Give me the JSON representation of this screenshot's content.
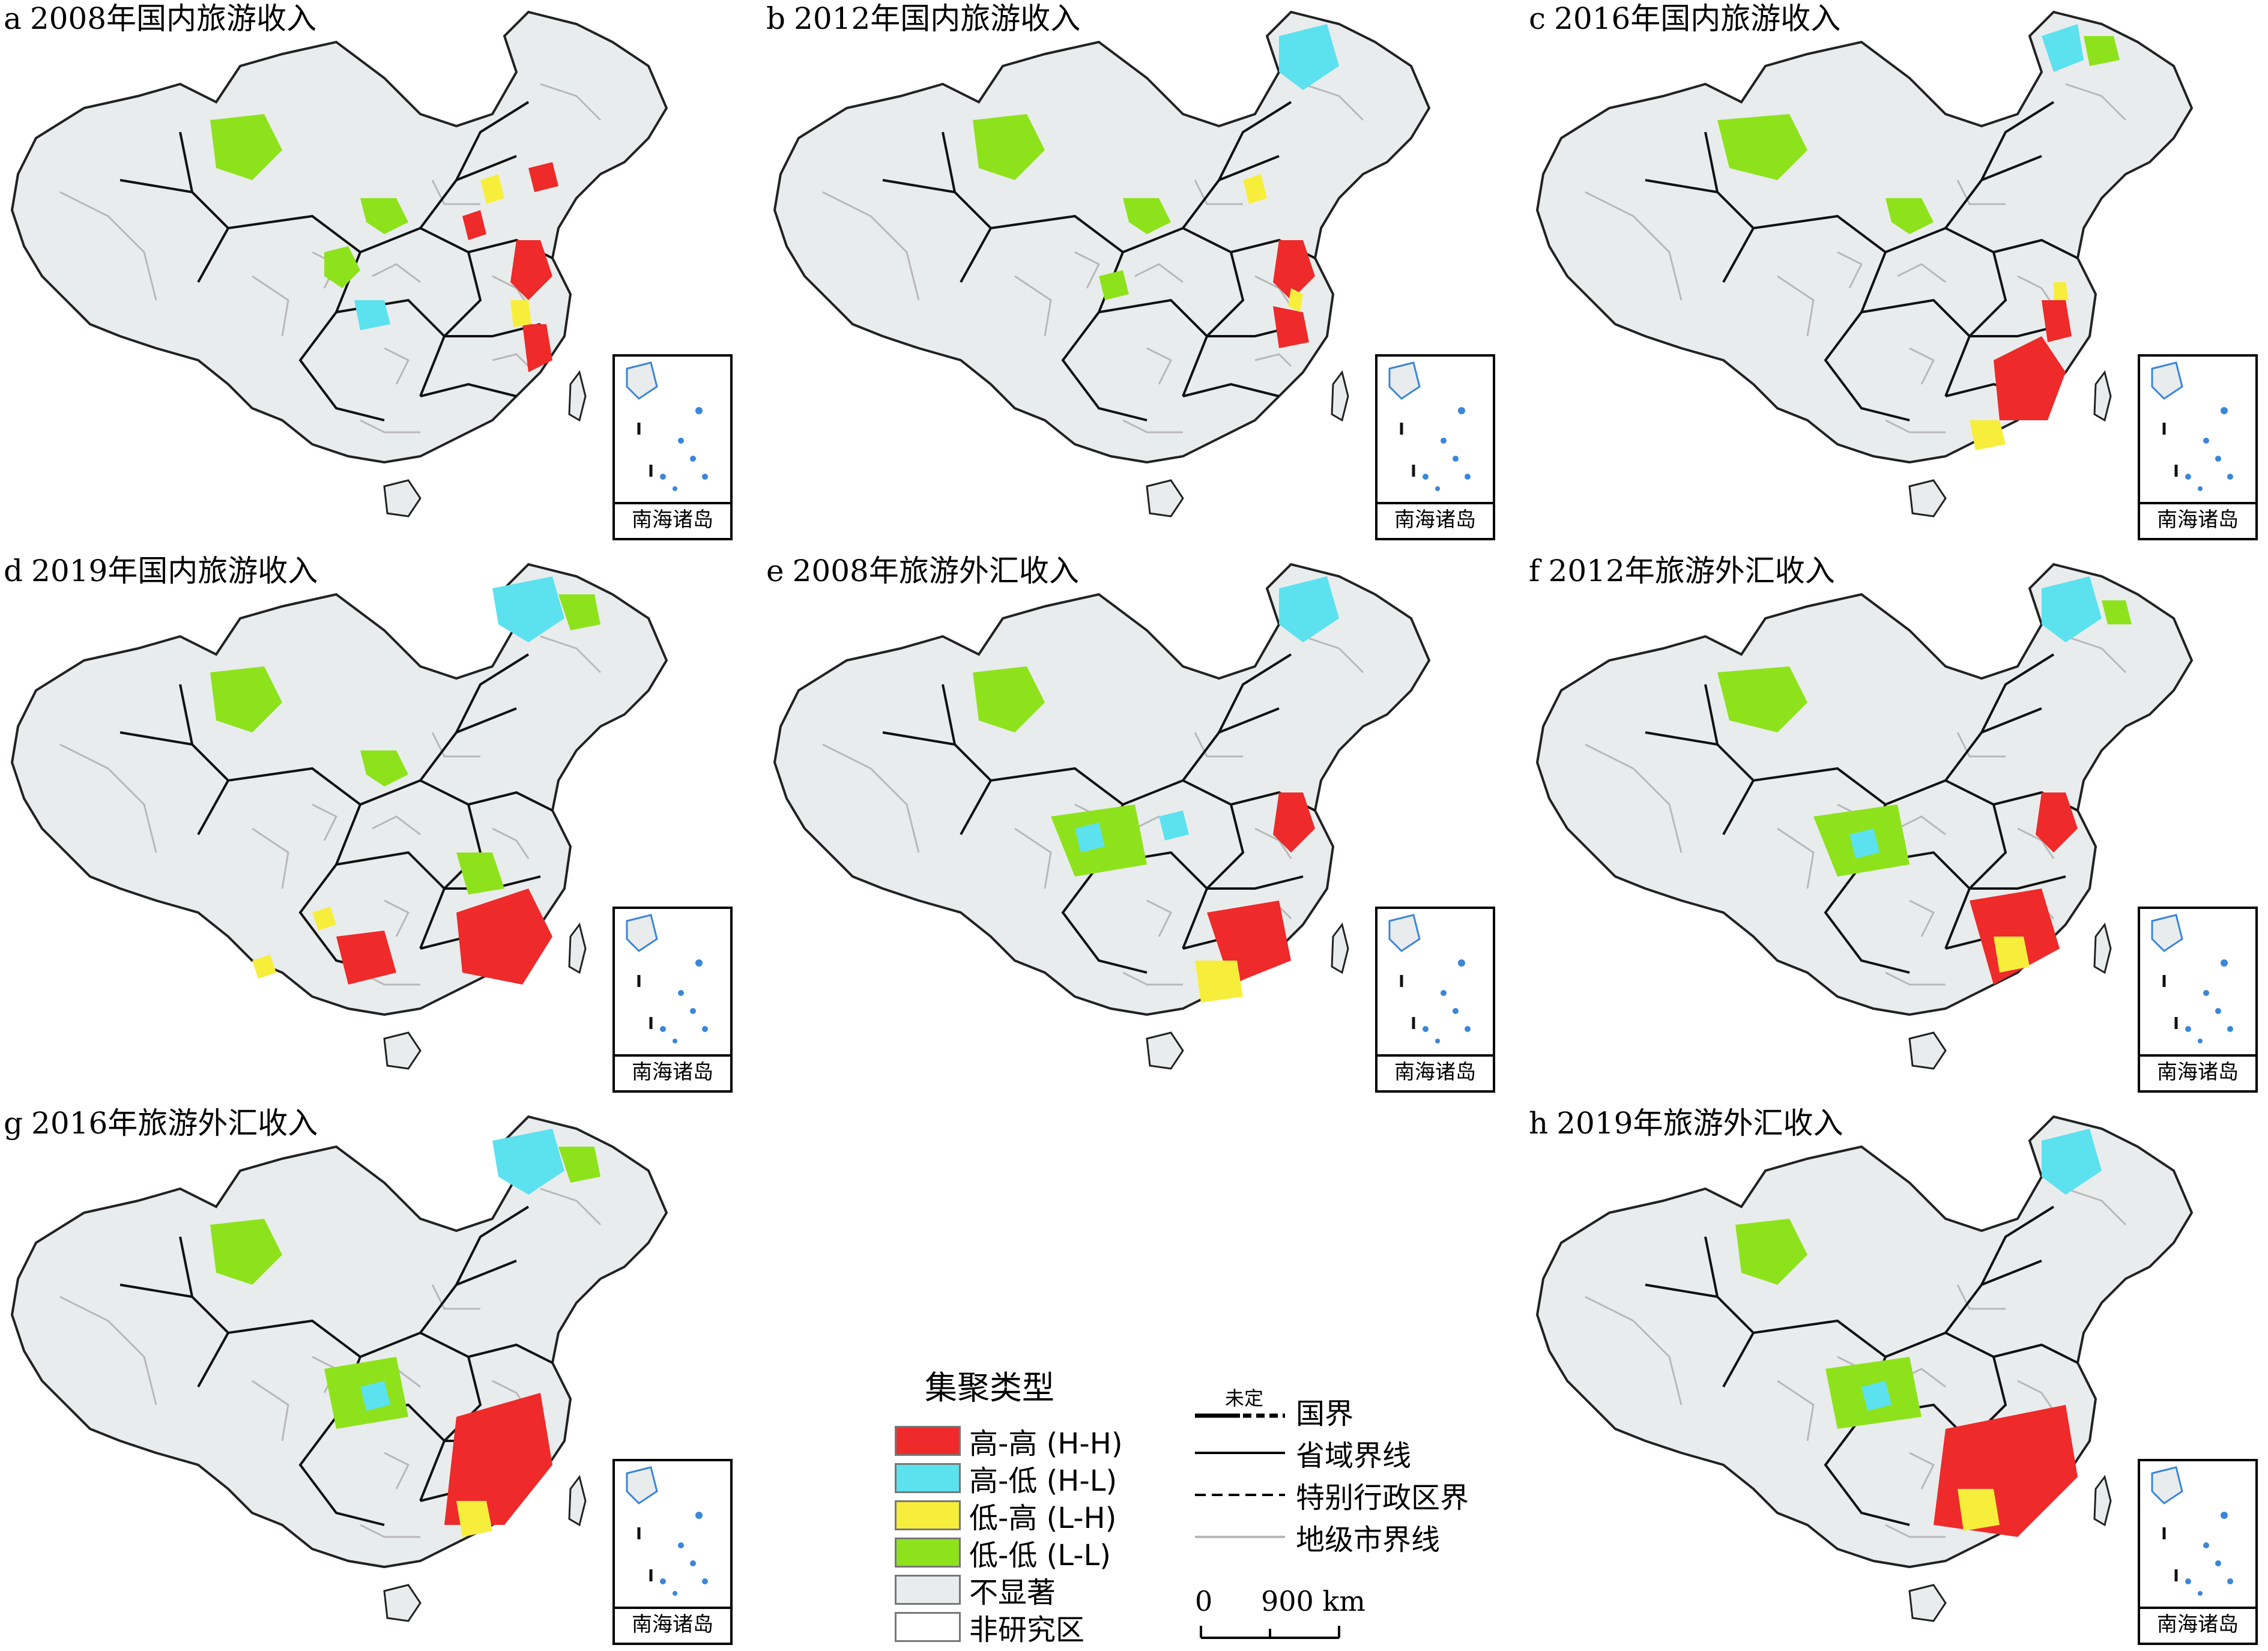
{
  "panels": [
    {
      "letter": "a",
      "title": "2008年国内旅游收入"
    },
    {
      "letter": "b",
      "title": "2012年国内旅游收入"
    },
    {
      "letter": "c",
      "title": "2016年国内旅游收入"
    },
    {
      "letter": "d",
      "title": "2019年国内旅游收入"
    },
    {
      "letter": "e",
      "title": "2008年旅游外汇收入"
    },
    {
      "letter": "f",
      "title": "2012年旅游外汇收入"
    },
    {
      "letter": "g",
      "title": "2016年旅游外汇收入"
    },
    {
      "letter": "h",
      "title": "2019年旅游外汇收入"
    }
  ],
  "inset_label": "南海诸岛",
  "legend": {
    "title": "集聚类型",
    "items": [
      {
        "label": "高-高 (H-H)",
        "color": "#ee2a2a"
      },
      {
        "label": "高-低 (H-L)",
        "color": "#5ce1ef"
      },
      {
        "label": "低-高 (L-H)",
        "color": "#f7ee3c"
      },
      {
        "label": "低-低 (L-L)",
        "color": "#8ee21c"
      },
      {
        "label": "不显著",
        "color": "#e9eced"
      },
      {
        "label": "非研究区",
        "color": "#ffffff"
      }
    ],
    "lines": [
      {
        "label": "国界",
        "note": "未定"
      },
      {
        "label": "省域界线"
      },
      {
        "label": "特别行政区界"
      },
      {
        "label": "地级市界线"
      }
    ],
    "scale": {
      "zero": "0",
      "distance": "900 km"
    }
  }
}
